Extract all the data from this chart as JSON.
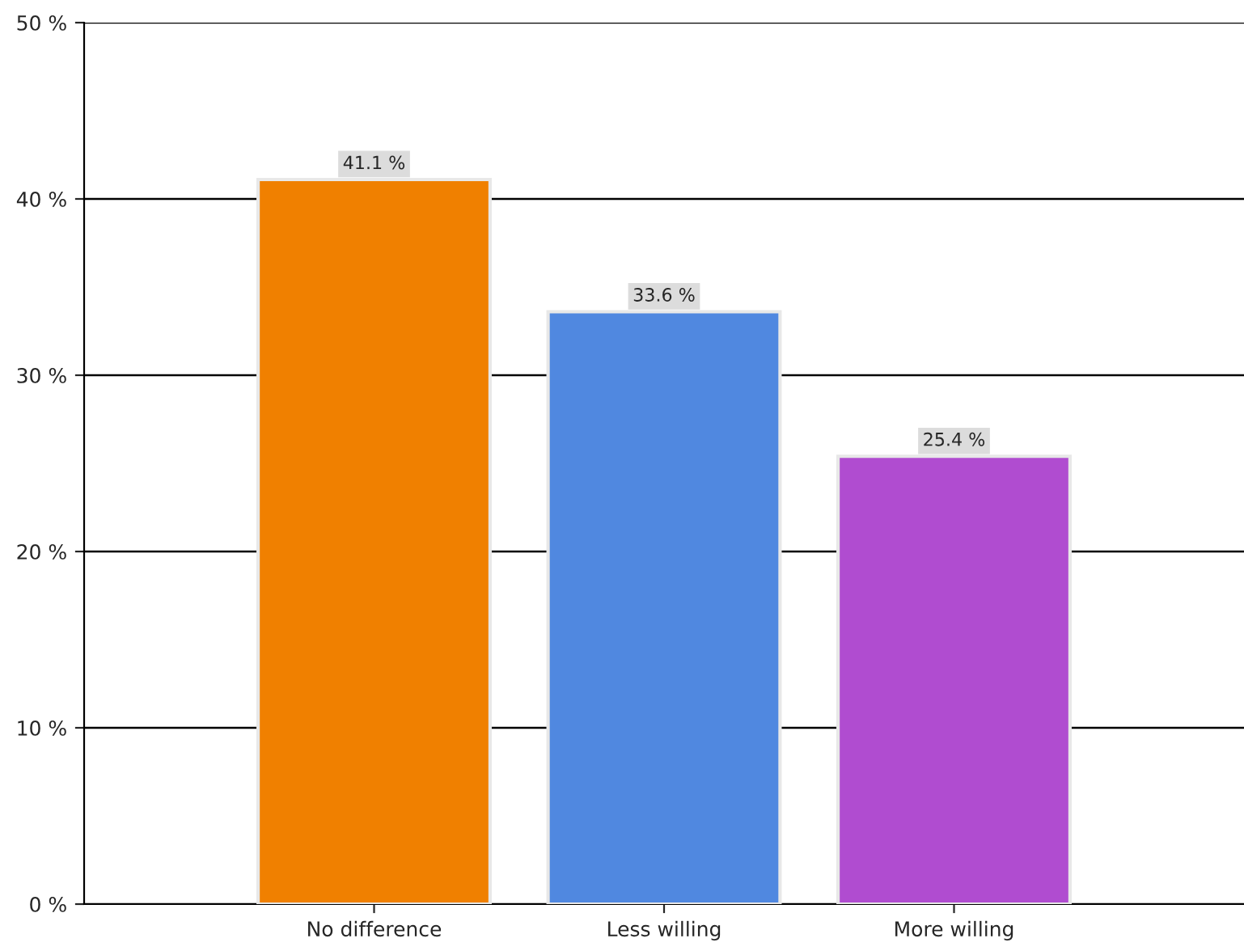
{
  "chart_data": {
    "type": "bar",
    "categories": [
      "No difference",
      "Less willing",
      "More willing"
    ],
    "values": [
      41.1,
      33.6,
      25.4
    ],
    "colors": [
      "#f08000",
      "#5088e0",
      "#b04cd0"
    ],
    "value_labels": [
      "41.1 %",
      "33.6 %",
      "25.4 %"
    ],
    "ylim": [
      0,
      50
    ],
    "yticks": [
      {
        "value": 0,
        "label": "0 %"
      },
      {
        "value": 10,
        "label": "10 %"
      },
      {
        "value": 20,
        "label": "20 %"
      },
      {
        "value": 30,
        "label": "30 %"
      },
      {
        "value": 40,
        "label": "40 %"
      },
      {
        "value": 50,
        "label": "50 %"
      }
    ],
    "grid": "y",
    "legend": false
  }
}
